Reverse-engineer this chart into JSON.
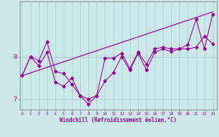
{
  "x": [
    0,
    1,
    2,
    3,
    4,
    5,
    6,
    7,
    8,
    9,
    10,
    11,
    12,
    13,
    14,
    15,
    16,
    17,
    18,
    19,
    20,
    21,
    22,
    23
  ],
  "line1": [
    7.55,
    8.0,
    7.9,
    8.35,
    7.65,
    7.6,
    7.35,
    7.08,
    7.0,
    7.08,
    7.96,
    7.96,
    8.08,
    7.72,
    8.1,
    7.82,
    8.18,
    8.22,
    8.18,
    8.18,
    8.18,
    8.22,
    8.48,
    8.3
  ],
  "line2": [
    7.55,
    8.0,
    7.78,
    8.1,
    7.4,
    7.3,
    7.5,
    7.08,
    6.88,
    7.08,
    7.42,
    7.62,
    8.0,
    7.68,
    8.08,
    7.68,
    8.1,
    8.18,
    8.12,
    8.18,
    8.28,
    8.88,
    8.18,
    9.0
  ],
  "trend_x": [
    0,
    23
  ],
  "trend_y": [
    7.55,
    9.05
  ],
  "ylim_min": 6.75,
  "ylim_max": 9.3,
  "yticks": [
    7,
    8
  ],
  "xlim_min": -0.3,
  "xlim_max": 23.5,
  "xticks": [
    0,
    1,
    2,
    3,
    4,
    5,
    6,
    7,
    8,
    9,
    10,
    11,
    12,
    13,
    14,
    15,
    16,
    17,
    18,
    19,
    20,
    21,
    22,
    23
  ],
  "xlabel": "Windchill (Refroidissement éolien,°C)",
  "line_color": "#990099",
  "bg_color": "#cce8e8",
  "grid_color": "#aacccc",
  "spine_color": "#888888"
}
